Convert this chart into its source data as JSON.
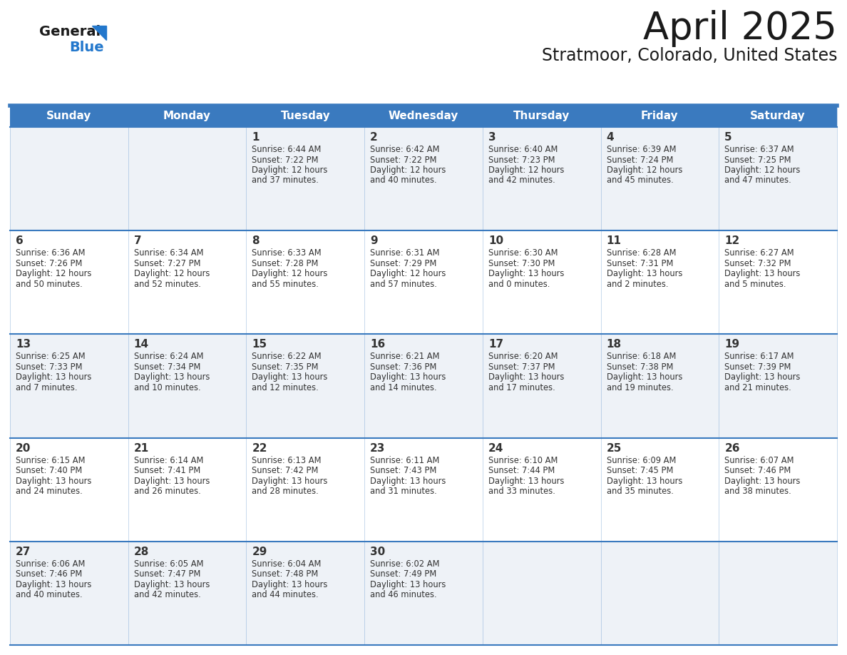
{
  "title": "April 2025",
  "subtitle": "Stratmoor, Colorado, United States",
  "header_bg_color": "#3a7abf",
  "header_text_color": "#ffffff",
  "days_of_week": [
    "Sunday",
    "Monday",
    "Tuesday",
    "Wednesday",
    "Thursday",
    "Friday",
    "Saturday"
  ],
  "cell_bg_even": "#eef2f7",
  "cell_bg_odd": "#ffffff",
  "cell_border_color": "#3a7abf",
  "title_color": "#1a1a1a",
  "subtitle_color": "#1a1a1a",
  "text_color": "#333333",
  "logo_general_color": "#1a1a1a",
  "logo_blue_color": "#2277cc",
  "calendar_data": [
    [
      {
        "day": "",
        "sunrise": "",
        "sunset": "",
        "daylight": ""
      },
      {
        "day": "",
        "sunrise": "",
        "sunset": "",
        "daylight": ""
      },
      {
        "day": "1",
        "sunrise": "6:44 AM",
        "sunset": "7:22 PM",
        "daylight": "12 hours\nand 37 minutes."
      },
      {
        "day": "2",
        "sunrise": "6:42 AM",
        "sunset": "7:22 PM",
        "daylight": "12 hours\nand 40 minutes."
      },
      {
        "day": "3",
        "sunrise": "6:40 AM",
        "sunset": "7:23 PM",
        "daylight": "12 hours\nand 42 minutes."
      },
      {
        "day": "4",
        "sunrise": "6:39 AM",
        "sunset": "7:24 PM",
        "daylight": "12 hours\nand 45 minutes."
      },
      {
        "day": "5",
        "sunrise": "6:37 AM",
        "sunset": "7:25 PM",
        "daylight": "12 hours\nand 47 minutes."
      }
    ],
    [
      {
        "day": "6",
        "sunrise": "6:36 AM",
        "sunset": "7:26 PM",
        "daylight": "12 hours\nand 50 minutes."
      },
      {
        "day": "7",
        "sunrise": "6:34 AM",
        "sunset": "7:27 PM",
        "daylight": "12 hours\nand 52 minutes."
      },
      {
        "day": "8",
        "sunrise": "6:33 AM",
        "sunset": "7:28 PM",
        "daylight": "12 hours\nand 55 minutes."
      },
      {
        "day": "9",
        "sunrise": "6:31 AM",
        "sunset": "7:29 PM",
        "daylight": "12 hours\nand 57 minutes."
      },
      {
        "day": "10",
        "sunrise": "6:30 AM",
        "sunset": "7:30 PM",
        "daylight": "13 hours\nand 0 minutes."
      },
      {
        "day": "11",
        "sunrise": "6:28 AM",
        "sunset": "7:31 PM",
        "daylight": "13 hours\nand 2 minutes."
      },
      {
        "day": "12",
        "sunrise": "6:27 AM",
        "sunset": "7:32 PM",
        "daylight": "13 hours\nand 5 minutes."
      }
    ],
    [
      {
        "day": "13",
        "sunrise": "6:25 AM",
        "sunset": "7:33 PM",
        "daylight": "13 hours\nand 7 minutes."
      },
      {
        "day": "14",
        "sunrise": "6:24 AM",
        "sunset": "7:34 PM",
        "daylight": "13 hours\nand 10 minutes."
      },
      {
        "day": "15",
        "sunrise": "6:22 AM",
        "sunset": "7:35 PM",
        "daylight": "13 hours\nand 12 minutes."
      },
      {
        "day": "16",
        "sunrise": "6:21 AM",
        "sunset": "7:36 PM",
        "daylight": "13 hours\nand 14 minutes."
      },
      {
        "day": "17",
        "sunrise": "6:20 AM",
        "sunset": "7:37 PM",
        "daylight": "13 hours\nand 17 minutes."
      },
      {
        "day": "18",
        "sunrise": "6:18 AM",
        "sunset": "7:38 PM",
        "daylight": "13 hours\nand 19 minutes."
      },
      {
        "day": "19",
        "sunrise": "6:17 AM",
        "sunset": "7:39 PM",
        "daylight": "13 hours\nand 21 minutes."
      }
    ],
    [
      {
        "day": "20",
        "sunrise": "6:15 AM",
        "sunset": "7:40 PM",
        "daylight": "13 hours\nand 24 minutes."
      },
      {
        "day": "21",
        "sunrise": "6:14 AM",
        "sunset": "7:41 PM",
        "daylight": "13 hours\nand 26 minutes."
      },
      {
        "day": "22",
        "sunrise": "6:13 AM",
        "sunset": "7:42 PM",
        "daylight": "13 hours\nand 28 minutes."
      },
      {
        "day": "23",
        "sunrise": "6:11 AM",
        "sunset": "7:43 PM",
        "daylight": "13 hours\nand 31 minutes."
      },
      {
        "day": "24",
        "sunrise": "6:10 AM",
        "sunset": "7:44 PM",
        "daylight": "13 hours\nand 33 minutes."
      },
      {
        "day": "25",
        "sunrise": "6:09 AM",
        "sunset": "7:45 PM",
        "daylight": "13 hours\nand 35 minutes."
      },
      {
        "day": "26",
        "sunrise": "6:07 AM",
        "sunset": "7:46 PM",
        "daylight": "13 hours\nand 38 minutes."
      }
    ],
    [
      {
        "day": "27",
        "sunrise": "6:06 AM",
        "sunset": "7:46 PM",
        "daylight": "13 hours\nand 40 minutes."
      },
      {
        "day": "28",
        "sunrise": "6:05 AM",
        "sunset": "7:47 PM",
        "daylight": "13 hours\nand 42 minutes."
      },
      {
        "day": "29",
        "sunrise": "6:04 AM",
        "sunset": "7:48 PM",
        "daylight": "13 hours\nand 44 minutes."
      },
      {
        "day": "30",
        "sunrise": "6:02 AM",
        "sunset": "7:49 PM",
        "daylight": "13 hours\nand 46 minutes."
      },
      {
        "day": "",
        "sunrise": "",
        "sunset": "",
        "daylight": ""
      },
      {
        "day": "",
        "sunrise": "",
        "sunset": "",
        "daylight": ""
      },
      {
        "day": "",
        "sunrise": "",
        "sunset": "",
        "daylight": ""
      }
    ]
  ]
}
